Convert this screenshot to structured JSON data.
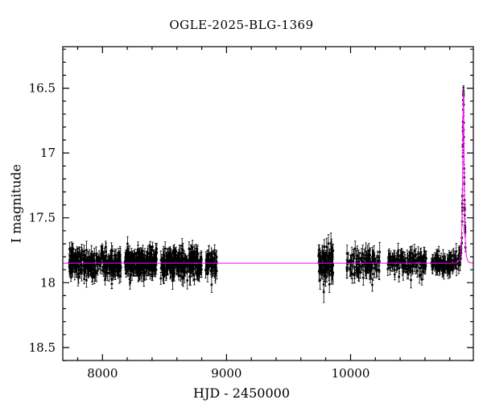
{
  "chart_data": {
    "type": "scatter",
    "title": "OGLE-2025-BLG-1369",
    "xlabel": "HJD - 2450000",
    "ylabel": "I magnitude",
    "x_range": [
      7680,
      10990
    ],
    "y_top": 16.18,
    "y_bottom": 18.6,
    "y_axis_inverted": true,
    "xticks": [
      8000,
      9000,
      10000
    ],
    "xtick_minor_step": 200,
    "yticks": [
      16.5,
      17.0,
      17.5,
      18.0,
      18.5
    ],
    "ytick_minor_step": 0.1,
    "grid": false,
    "legend": false,
    "marker_color": "#000000",
    "error_bar_color": "#000000",
    "model_color": "#ff00ff",
    "baseline_mag": 17.85,
    "microlensing_model": {
      "t0": 10910,
      "tE": 12,
      "u0": 0.3,
      "peak_mag": 16.51
    },
    "seasons": [
      {
        "x_start": 7730,
        "x_end": 8150,
        "n": 260,
        "scatter": 0.05,
        "err": 0.05
      },
      {
        "x_start": 8180,
        "x_end": 8440,
        "n": 230,
        "scatter": 0.05,
        "err": 0.05
      },
      {
        "x_start": 8470,
        "x_end": 8800,
        "n": 240,
        "scatter": 0.05,
        "err": 0.05
      },
      {
        "x_start": 8830,
        "x_end": 8930,
        "n": 60,
        "scatter": 0.05,
        "err": 0.05
      },
      {
        "x_start": 9740,
        "x_end": 9860,
        "n": 85,
        "scatter": 0.075,
        "err": 0.06
      },
      {
        "x_start": 9960,
        "x_end": 10240,
        "n": 110,
        "scatter": 0.05,
        "err": 0.055
      },
      {
        "x_start": 10300,
        "x_end": 10620,
        "n": 140,
        "scatter": 0.045,
        "err": 0.045
      },
      {
        "x_start": 10650,
        "x_end": 10930,
        "n": 130,
        "scatter": 0.04,
        "err": 0.045
      },
      {
        "x_start": 10895,
        "x_end": 10925,
        "n": 22,
        "scatter": 0.035,
        "err": 0.04
      }
    ]
  }
}
